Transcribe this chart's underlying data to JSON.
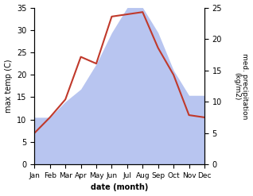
{
  "months": [
    "Jan",
    "Feb",
    "Mar",
    "Apr",
    "May",
    "Jun",
    "Jul",
    "Aug",
    "Sep",
    "Oct",
    "Nov",
    "Dec"
  ],
  "temp": [
    7.0,
    10.5,
    14.5,
    24.0,
    22.5,
    33.0,
    33.5,
    34.0,
    26.0,
    20.0,
    11.0,
    10.5
  ],
  "precip_kg": [
    7.5,
    7.5,
    10,
    12,
    16,
    21,
    25,
    25,
    21,
    15,
    11,
    11
  ],
  "temp_color": "#c0392b",
  "precip_fill_color": "#b8c5f0",
  "ylabel_left": "max temp (C)",
  "ylabel_right": "med. precipitation\n(kg/m2)",
  "xlabel": "date (month)",
  "ylim_left": [
    0,
    35
  ],
  "ylim_right": [
    0,
    25
  ],
  "yticks_left": [
    0,
    5,
    10,
    15,
    20,
    25,
    30,
    35
  ],
  "yticks_right": [
    0,
    5,
    10,
    15,
    20,
    25
  ],
  "scale_factor": 1.4
}
